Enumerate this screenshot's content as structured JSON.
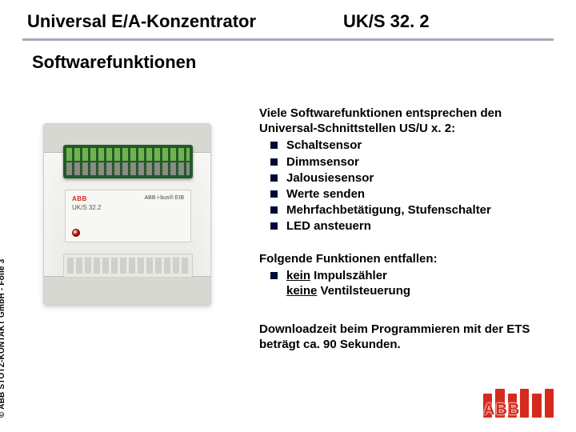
{
  "header": {
    "title": "Universal E/A-Konzentrator",
    "code": "UK/S 32. 2"
  },
  "subtitle": "Softwarefunktionen",
  "para1_intro": "Viele Softwarefunktionen entsprechen den Universal-Schnittstellen US/U x. 2:",
  "features": [
    "Schaltsensor",
    "Dimmsensor",
    "Jalousiesensor",
    "Werte senden",
    "Mehrfachbetätigung, Stufenschalter",
    "LED ansteuern"
  ],
  "para2_intro": "Folgende Funktionen entfallen:",
  "omitted": {
    "line1_pre": "kein",
    "line1_rest": " Impulszähler",
    "line2_pre": "keine",
    "line2_rest": " Ventilsteuerung"
  },
  "para3": "Downloadzeit beim Programmieren mit der ETS beträgt ca. 90 Sekunden.",
  "side": "© ABB STOTZ-KONTAKT GmbH  -  Folie 3",
  "device": {
    "brand": "ABB",
    "model": "UK/S 32.2",
    "bus": "ABB i-bus® EIB"
  },
  "logo_text": "ABB",
  "colors": {
    "accent": "#d52b1e",
    "bullet": "#000b35",
    "rule": "#a7a7b8"
  }
}
